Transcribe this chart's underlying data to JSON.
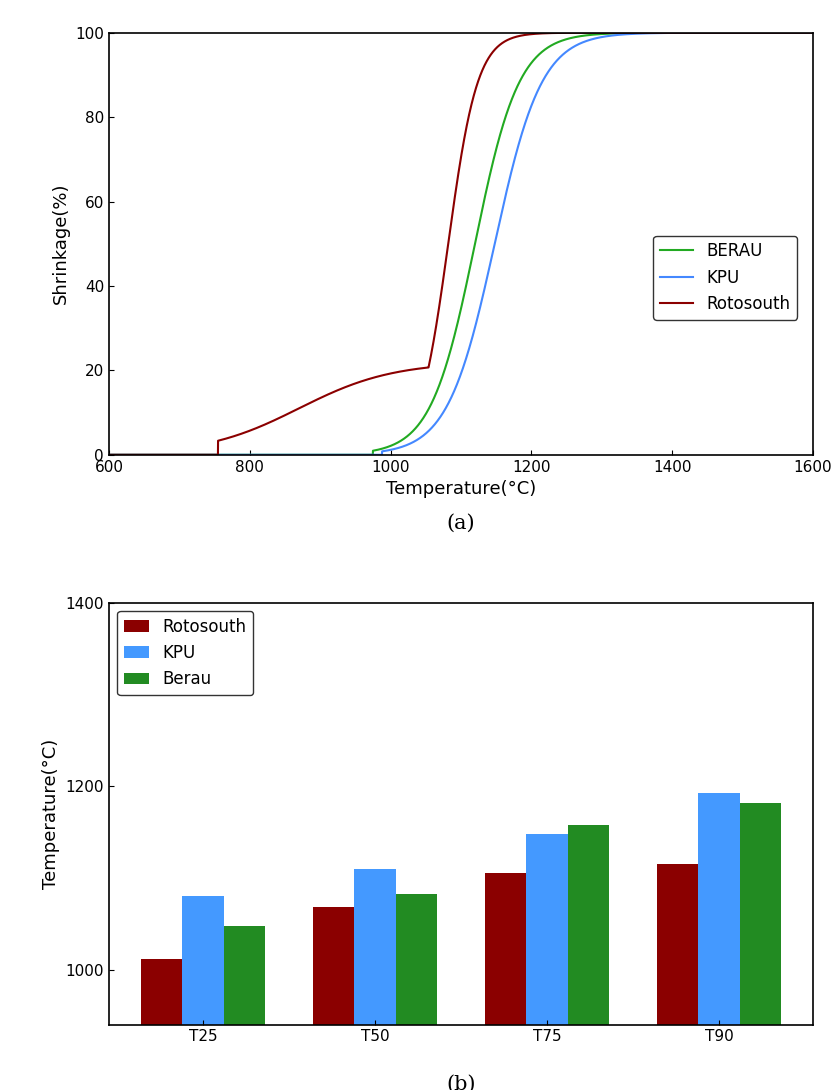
{
  "chart_a": {
    "xlabel": "Temperature(°C)",
    "ylabel": "Shrinkage(%)",
    "xlim": [
      600,
      1600
    ],
    "ylim": [
      0,
      100
    ],
    "xticks": [
      600,
      800,
      1000,
      1200,
      1400,
      1600
    ],
    "yticks": [
      0,
      20,
      40,
      60,
      80,
      100
    ],
    "legend_entries": [
      "BERAU",
      "KPU",
      "Rotosouth"
    ],
    "berau_color": "#22AA22",
    "kpu_color": "#4488FF",
    "rotosouth_color": "#8B0000"
  },
  "chart_b": {
    "ylabel": "Temperature(°C)",
    "ylim": [
      940,
      1400
    ],
    "yticks": [
      1000,
      1200,
      1400
    ],
    "categories": [
      "T25",
      "T50",
      "T75",
      "T90"
    ],
    "rotosouth_values": [
      1012,
      1068,
      1105,
      1115
    ],
    "kpu_values": [
      1080,
      1110,
      1148,
      1192
    ],
    "berau_values": [
      1048,
      1082,
      1158,
      1182
    ],
    "rotosouth_color": "#8B0000",
    "kpu_color": "#4499FF",
    "berau_color": "#228B22",
    "legend_entries": [
      "Rotosouth",
      "KPU",
      "Berau"
    ]
  },
  "label_a": "(a)",
  "label_b": "(b)",
  "background_color": "#ffffff"
}
